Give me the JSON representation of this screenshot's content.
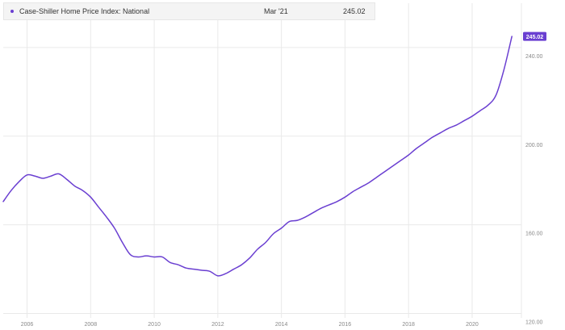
{
  "legend": {
    "series_name": "Case-Shiller Home Price Index: National",
    "date": "Mar '21",
    "value": "245.02"
  },
  "colors": {
    "series": "#6a3fd1",
    "grid": "#e9e9e9",
    "tick_text": "#888888"
  },
  "chart_data": {
    "type": "line",
    "title": "",
    "xlabel": "",
    "ylabel": "",
    "x_type": "year",
    "xlim": [
      2005.25,
      2021.55
    ],
    "ylim": [
      118,
      260
    ],
    "grid": true,
    "y_axis_side": "right",
    "x_ticks": [
      2006,
      2008,
      2010,
      2012,
      2014,
      2016,
      2018,
      2020
    ],
    "x_tick_labels": [
      "2006",
      "2008",
      "2010",
      "2012",
      "2014",
      "2016",
      "2018",
      "2020"
    ],
    "y_ticks": [
      120,
      160,
      200,
      240
    ],
    "y_tick_labels": [
      "120.00",
      "160.00",
      "200.00",
      "240.00"
    ],
    "last_value_label": "245.02",
    "series": [
      {
        "name": "Case-Shiller Home Price Index: National",
        "x": [
          2005.25,
          2005.5,
          2005.75,
          2006.0,
          2006.25,
          2006.5,
          2006.75,
          2007.0,
          2007.25,
          2007.5,
          2007.75,
          2008.0,
          2008.25,
          2008.5,
          2008.75,
          2009.0,
          2009.25,
          2009.5,
          2009.75,
          2010.0,
          2010.25,
          2010.5,
          2010.75,
          2011.0,
          2011.25,
          2011.5,
          2011.75,
          2012.0,
          2012.25,
          2012.5,
          2012.75,
          2013.0,
          2013.25,
          2013.5,
          2013.75,
          2014.0,
          2014.25,
          2014.5,
          2014.75,
          2015.0,
          2015.25,
          2015.5,
          2015.75,
          2016.0,
          2016.25,
          2016.5,
          2016.75,
          2017.0,
          2017.25,
          2017.5,
          2017.75,
          2018.0,
          2018.25,
          2018.5,
          2018.75,
          2019.0,
          2019.25,
          2019.5,
          2019.75,
          2020.0,
          2020.25,
          2020.5,
          2020.75,
          2021.0,
          2021.25
        ],
        "values": [
          170.5,
          175.5,
          179.5,
          182.5,
          182.0,
          181.0,
          182.0,
          183.0,
          180.5,
          177.5,
          175.5,
          172.5,
          168.0,
          163.5,
          158.5,
          152.0,
          146.5,
          145.5,
          146.0,
          145.5,
          145.5,
          143.0,
          142.0,
          140.5,
          140.0,
          139.5,
          139.0,
          137.0,
          138.0,
          140.0,
          142.0,
          145.0,
          149.0,
          152.0,
          156.0,
          158.5,
          161.5,
          162.0,
          163.5,
          165.5,
          167.5,
          169.0,
          170.5,
          172.5,
          175.0,
          177.0,
          179.0,
          181.5,
          184.0,
          186.5,
          189.0,
          191.5,
          194.5,
          197.0,
          199.5,
          201.5,
          203.5,
          205.0,
          207.0,
          209.0,
          211.5,
          214.0,
          218.5,
          230.0,
          245.02
        ]
      }
    ]
  }
}
